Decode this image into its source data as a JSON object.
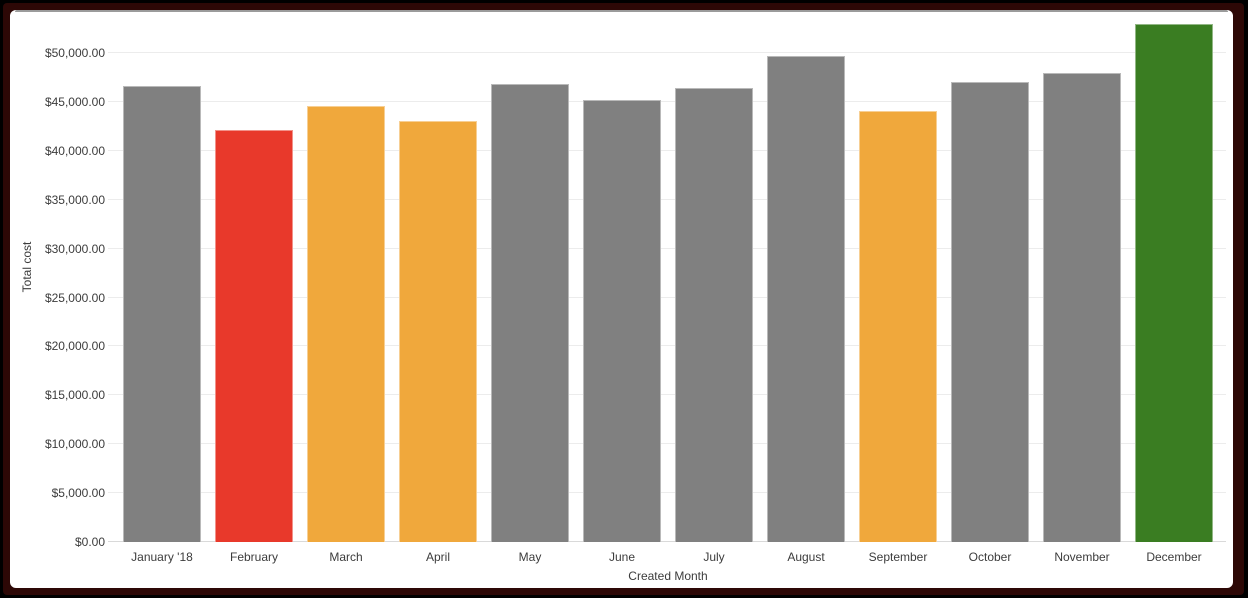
{
  "chart_data": {
    "type": "bar",
    "title": "",
    "xlabel": "Created Month",
    "ylabel": "Total cost",
    "categories": [
      "January '18",
      "February",
      "March",
      "April",
      "May",
      "June",
      "July",
      "August",
      "September",
      "October",
      "November",
      "December"
    ],
    "values": [
      46600,
      42100,
      44600,
      43100,
      46800,
      45200,
      46400,
      49700,
      44100,
      47000,
      48000,
      53000
    ],
    "bar_colors": [
      "#808080",
      "#E8392B",
      "#F0A83C",
      "#F0A83C",
      "#808080",
      "#808080",
      "#808080",
      "#808080",
      "#F0A83C",
      "#808080",
      "#808080",
      "#3A7D22"
    ],
    "y_ticks": [
      0,
      5000,
      10000,
      15000,
      20000,
      25000,
      30000,
      35000,
      40000,
      45000,
      50000
    ],
    "y_tick_labels": [
      "$0.00",
      "$5,000.00",
      "$10,000.00",
      "$15,000.00",
      "$20,000.00",
      "$25,000.00",
      "$30,000.00",
      "$35,000.00",
      "$40,000.00",
      "$45,000.00",
      "$50,000.00"
    ],
    "ylim": [
      0,
      54400
    ],
    "grid": true,
    "legend": false
  },
  "colors": {
    "bar_default": "#808080",
    "bar_red": "#E8392B",
    "bar_orange": "#F0A83C",
    "bar_green": "#3A7D22",
    "gridline": "#ececec",
    "axis_line": "#d9d9d9",
    "axis_text": "#3c3c3c",
    "card_background": "#ffffff",
    "frame": "#2d0806",
    "card_top_edge": "#9b9b9b"
  }
}
